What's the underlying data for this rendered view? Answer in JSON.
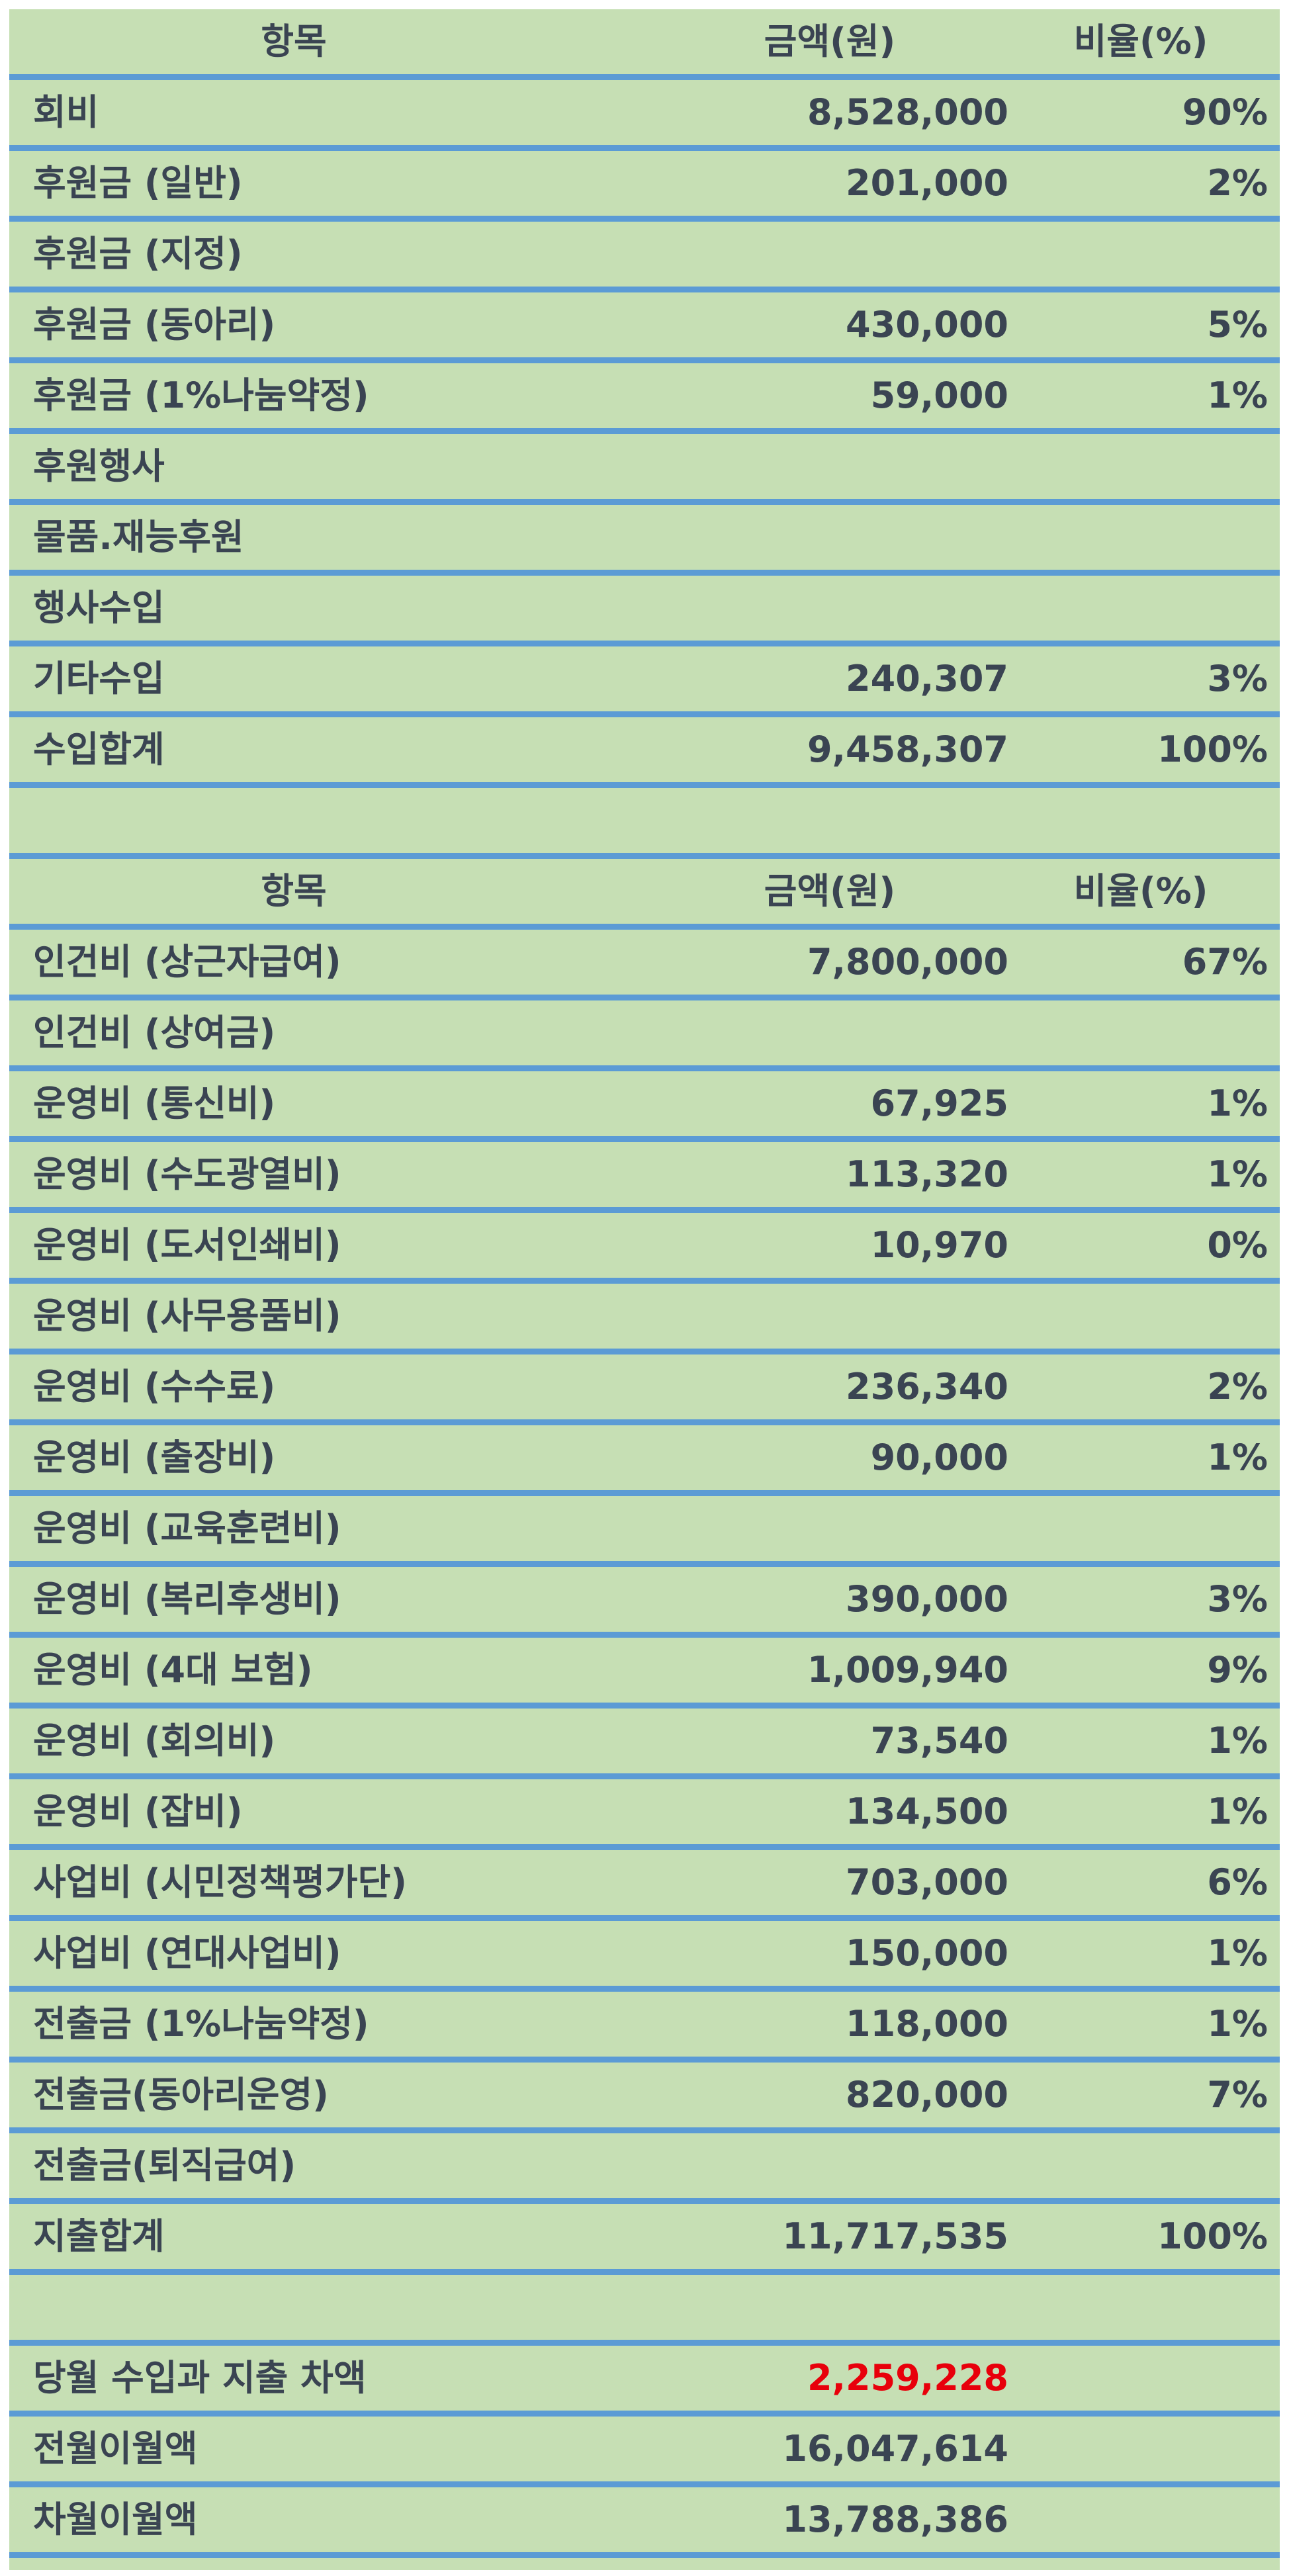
{
  "income": {
    "header": {
      "item": "항목",
      "amount": "금액(원)",
      "ratio": "비율(%)"
    },
    "rows": [
      {
        "item": "회비",
        "amount": "8,528,000",
        "ratio": "90%"
      },
      {
        "item": "후원금 (일반)",
        "amount": "201,000",
        "ratio": "2%"
      },
      {
        "item": "후원금 (지정)",
        "amount": "",
        "ratio": ""
      },
      {
        "item": "후원금 (동아리)",
        "amount": "430,000",
        "ratio": "5%"
      },
      {
        "item": "후원금 (1%나눔약정)",
        "amount": "59,000",
        "ratio": "1%"
      },
      {
        "item": "후원행사",
        "amount": "",
        "ratio": ""
      },
      {
        "item": "물품.재능후원",
        "amount": "",
        "ratio": ""
      },
      {
        "item": "행사수입",
        "amount": "",
        "ratio": ""
      },
      {
        "item": "기타수입",
        "amount": "240,307",
        "ratio": "3%"
      },
      {
        "item": "수입합계",
        "amount": "9,458,307",
        "ratio": "100%"
      }
    ]
  },
  "expense": {
    "header": {
      "item": "항목",
      "amount": "금액(원)",
      "ratio": "비율(%)"
    },
    "rows": [
      {
        "item": "인건비 (상근자급여)",
        "amount": "7,800,000",
        "ratio": "67%"
      },
      {
        "item": "인건비 (상여금)",
        "amount": "",
        "ratio": ""
      },
      {
        "item": "운영비 (통신비)",
        "amount": "67,925",
        "ratio": "1%"
      },
      {
        "item": "운영비 (수도광열비)",
        "amount": "113,320",
        "ratio": "1%"
      },
      {
        "item": "운영비 (도서인쇄비)",
        "amount": "10,970",
        "ratio": "0%"
      },
      {
        "item": "운영비 (사무용품비)",
        "amount": "",
        "ratio": ""
      },
      {
        "item": "운영비 (수수료)",
        "amount": "236,340",
        "ratio": "2%"
      },
      {
        "item": "운영비 (출장비)",
        "amount": "90,000",
        "ratio": "1%"
      },
      {
        "item": "운영비 (교육훈련비)",
        "amount": "",
        "ratio": ""
      },
      {
        "item": "운영비 (복리후생비)",
        "amount": "390,000",
        "ratio": "3%"
      },
      {
        "item": "운영비 (4대 보험)",
        "amount": "1,009,940",
        "ratio": "9%"
      },
      {
        "item": "운영비 (회의비)",
        "amount": "73,540",
        "ratio": "1%"
      },
      {
        "item": "운영비 (잡비)",
        "amount": "134,500",
        "ratio": "1%"
      },
      {
        "item": "사업비 (시민정책평가단)",
        "amount": "703,000",
        "ratio": "6%"
      },
      {
        "item": "사업비 (연대사업비)",
        "amount": "150,000",
        "ratio": "1%"
      },
      {
        "item": "전출금 (1%나눔약정)",
        "amount": "118,000",
        "ratio": "1%"
      },
      {
        "item": "전출금(동아리운영)",
        "amount": "820,000",
        "ratio": "7%"
      },
      {
        "item": "전출금(퇴직급여)",
        "amount": "",
        "ratio": ""
      },
      {
        "item": "지출합계",
        "amount": "11,717,535",
        "ratio": "100%"
      }
    ]
  },
  "summary": {
    "rows": [
      {
        "item": "당월 수입과 지출 차액",
        "amount": "2,259,228",
        "negative": true
      },
      {
        "item": "전월이월액",
        "amount": "16,047,614"
      },
      {
        "item": "차월이월액",
        "amount": "13,788,386"
      }
    ]
  },
  "colors": {
    "background": "#c6dfb4",
    "rule": "#5b9bd5",
    "text": "#3a4452",
    "negative": "#e8000b"
  }
}
